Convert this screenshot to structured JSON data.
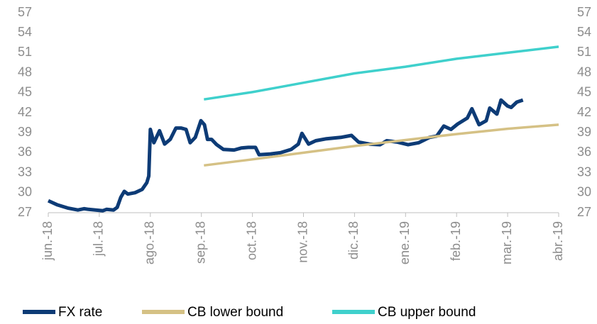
{
  "chart_data": {
    "type": "line",
    "xticks": [
      {
        "value": 0,
        "label": "jun.-18"
      },
      {
        "value": 1,
        "label": "jul.-18"
      },
      {
        "value": 2,
        "label": "ago.-18"
      },
      {
        "value": 3,
        "label": "sep.-18"
      },
      {
        "value": 4,
        "label": "oct.-18"
      },
      {
        "value": 5,
        "label": "nov.-18"
      },
      {
        "value": 6,
        "label": "dic.-18"
      },
      {
        "value": 7,
        "label": "ene.-19"
      },
      {
        "value": 8,
        "label": "feb.-19"
      },
      {
        "value": 9,
        "label": "mar.-19"
      },
      {
        "value": 10,
        "label": "abr.-19"
      }
    ],
    "xlim": [
      0,
      10
    ],
    "ylim": [
      27,
      57
    ],
    "yticks": [
      27,
      30,
      33,
      36,
      39,
      42,
      45,
      48,
      51,
      54,
      57
    ],
    "y2lim": [
      27,
      57
    ],
    "y2ticks": [
      27,
      30,
      33,
      36,
      39,
      42,
      45,
      48,
      51,
      54,
      57
    ],
    "legend": "bottom",
    "series": [
      {
        "name": "FX rate",
        "color": "#0d3b76",
        "x": [
          0,
          0.17,
          0.38,
          0.58,
          0.7,
          0.79,
          1.07,
          1.14,
          1.28,
          1.35,
          1.42,
          1.49,
          1.56,
          1.7,
          1.84,
          1.93,
          1.97,
          2.0,
          2.07,
          2.18,
          2.28,
          2.39,
          2.5,
          2.6,
          2.7,
          2.78,
          2.88,
          2.99,
          3.06,
          3.12,
          3.2,
          3.3,
          3.43,
          3.64,
          3.78,
          3.92,
          4.06,
          4.13,
          4.34,
          4.55,
          4.76,
          4.9,
          4.97,
          5.1,
          5.24,
          5.45,
          5.73,
          5.94,
          6.08,
          6.29,
          6.5,
          6.63,
          6.84,
          7.05,
          7.26,
          7.47,
          7.61,
          7.75,
          7.89,
          8.02,
          8.21,
          8.3,
          8.44,
          8.58,
          8.65,
          8.79,
          8.87,
          9.0,
          9.07,
          9.18,
          9.3
        ],
        "values": [
          28.8,
          28.2,
          27.7,
          27.4,
          27.6,
          27.5,
          27.3,
          27.5,
          27.4,
          27.8,
          29.3,
          30.2,
          29.8,
          30.0,
          30.5,
          31.5,
          32.5,
          39.5,
          37.5,
          39.3,
          37.3,
          38.0,
          39.7,
          39.7,
          39.5,
          37.5,
          38.3,
          40.8,
          40.2,
          38.0,
          38.0,
          37.2,
          36.5,
          36.4,
          36.7,
          36.8,
          36.8,
          35.7,
          35.8,
          36.0,
          36.5,
          37.3,
          38.9,
          37.3,
          37.8,
          38.1,
          38.3,
          38.6,
          37.6,
          37.3,
          37.2,
          37.8,
          37.6,
          37.2,
          37.5,
          38.3,
          38.5,
          40.0,
          39.5,
          40.3,
          41.2,
          42.6,
          40.2,
          40.8,
          42.7,
          41.8,
          43.9,
          43.0,
          42.8,
          43.6,
          43.9
        ]
      },
      {
        "name": "CB lower bound",
        "color": "#d5c185",
        "x": [
          3.05,
          4,
          5,
          6,
          7,
          8,
          9,
          10
        ],
        "values": [
          34.1,
          35.0,
          36.0,
          37.0,
          37.9,
          38.8,
          39.6,
          40.2
        ]
      },
      {
        "name": "CB upper bound",
        "color": "#3fd0cc",
        "x": [
          3.05,
          4,
          5,
          6,
          7,
          8,
          9,
          10
        ],
        "values": [
          44.0,
          45.1,
          46.5,
          47.9,
          48.9,
          50.1,
          51.0,
          51.9
        ]
      }
    ]
  }
}
